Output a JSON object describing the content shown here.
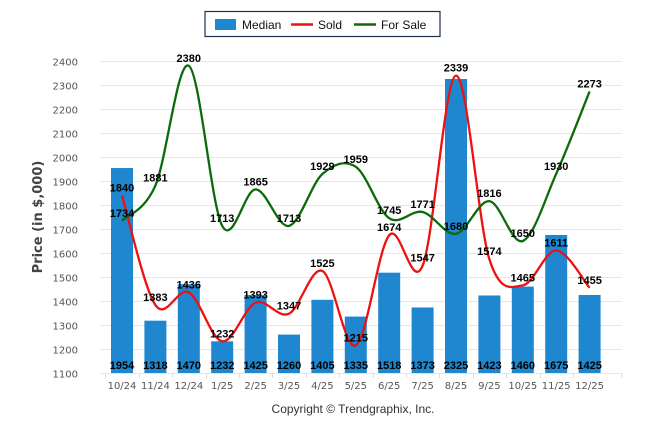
{
  "chart_data": {
    "type": "bar",
    "title": "",
    "xlabel": "",
    "ylabel": "Price (in $,000)",
    "ylim": [
      1100,
      2400
    ],
    "yticks": [
      1100,
      1200,
      1300,
      1400,
      1500,
      1600,
      1700,
      1800,
      1900,
      2000,
      2100,
      2200,
      2300,
      2400
    ],
    "grid": true,
    "legend_position": "top-center",
    "categories": [
      "10/24",
      "11/24",
      "12/24",
      "1/25",
      "2/25",
      "3/25",
      "4/25",
      "5/25",
      "6/25",
      "7/25",
      "8/25",
      "9/25",
      "10/25",
      "11/25",
      "12/25"
    ],
    "series": [
      {
        "name": "Median",
        "kind": "bar",
        "color": "#1f87d0",
        "values": [
          1954,
          1318,
          1470,
          1232,
          1425,
          1260,
          1405,
          1335,
          1518,
          1373,
          2325,
          1423,
          1460,
          1675,
          1425
        ]
      },
      {
        "name": "Sold",
        "kind": "line",
        "color": "#ee1111",
        "values": [
          1840,
          1383,
          1436,
          1232,
          1393,
          1347,
          1525,
          1215,
          1674,
          1547,
          2339,
          1574,
          1465,
          1611,
          1455
        ]
      },
      {
        "name": "For Sale",
        "kind": "line",
        "color": "#0b6b0b",
        "values": [
          1734,
          1881,
          2380,
          1713,
          1865,
          1713,
          1929,
          1959,
          1745,
          1771,
          1680,
          1816,
          1650,
          1930,
          2273
        ]
      }
    ]
  },
  "footer": {
    "copyright": "Copyright © Trendgraphix, Inc."
  }
}
